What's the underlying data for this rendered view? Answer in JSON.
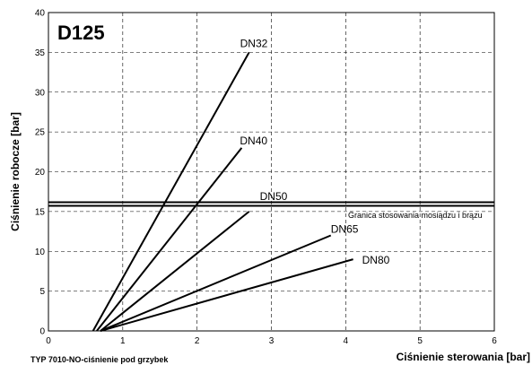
{
  "chart_data": {
    "type": "line",
    "title": "D125",
    "xlabel": "Ciśnienie sterowania [bar]",
    "ylabel": "Ciśnienie robocze [bar]",
    "footer": "TYP 7010-NO-ciśnienie pod grzybek",
    "xlim": [
      0,
      6
    ],
    "ylim": [
      0,
      40
    ],
    "xticks": [
      "0",
      "1",
      "2",
      "3",
      "4",
      "5",
      "6"
    ],
    "yticks": [
      "0",
      "5",
      "10",
      "15",
      "20",
      "25",
      "30",
      "35",
      "40"
    ],
    "grid": true,
    "series": [
      {
        "name": "DN32",
        "x": [
          0.6,
          2.7
        ],
        "y": [
          0,
          35
        ]
      },
      {
        "name": "DN40",
        "x": [
          0.65,
          2.6
        ],
        "y": [
          0,
          23
        ]
      },
      {
        "name": "DN50",
        "x": [
          0.7,
          2.7
        ],
        "y": [
          0,
          15
        ]
      },
      {
        "name": "DN65",
        "x": [
          0.7,
          3.8
        ],
        "y": [
          0,
          12
        ]
      },
      {
        "name": "DN80",
        "x": [
          0.7,
          4.1
        ],
        "y": [
          0,
          9
        ]
      }
    ],
    "limit_line": {
      "label": "Granica stosowania mosiądzu i brązu",
      "y": 16
    }
  }
}
